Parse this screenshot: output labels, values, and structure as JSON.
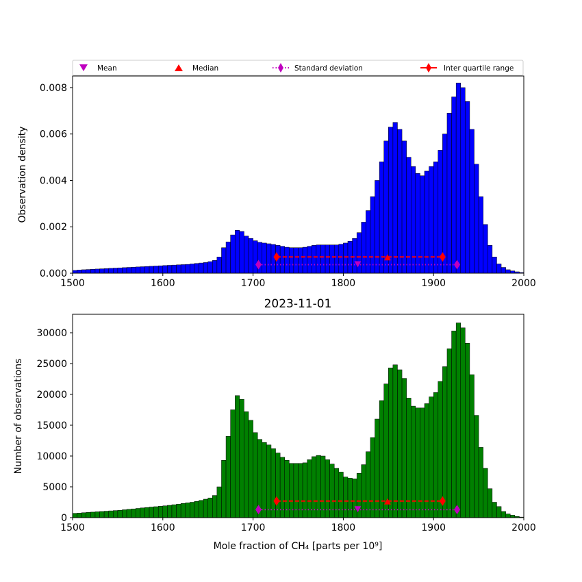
{
  "legend": {
    "entries": [
      {
        "label": "Mean",
        "color": "#bf00bf",
        "marker": "triangle-down",
        "line": "none"
      },
      {
        "label": "Median",
        "color": "#ff0000",
        "marker": "triangle-up",
        "line": "none"
      },
      {
        "label": "Standard deviation",
        "color": "#bf00bf",
        "marker": "diamond",
        "line": "dotted"
      },
      {
        "label": "Inter quartile range",
        "color": "#ff0000",
        "marker": "diamond",
        "line": "solid"
      }
    ]
  },
  "chart_data": [
    {
      "type": "bar",
      "title": "",
      "xlabel": "",
      "ylabel": "Observation density",
      "xlim": [
        1500,
        2000
      ],
      "ylim": [
        0,
        0.0085
      ],
      "bin_width": 5,
      "bar_color": "#0000ff",
      "xticks": [
        "1500",
        "1600",
        "1700",
        "1800",
        "1900",
        "2000"
      ],
      "yticks": [
        "0.000",
        "0.002",
        "0.004",
        "0.006",
        "0.008"
      ],
      "ytick_values": [
        0,
        0.002,
        0.004,
        0.006,
        0.008
      ],
      "bin_starts": [
        1500,
        1505,
        1510,
        1515,
        1520,
        1525,
        1530,
        1535,
        1540,
        1545,
        1550,
        1555,
        1560,
        1565,
        1570,
        1575,
        1580,
        1585,
        1590,
        1595,
        1600,
        1605,
        1610,
        1615,
        1620,
        1625,
        1630,
        1635,
        1640,
        1645,
        1650,
        1655,
        1660,
        1665,
        1670,
        1675,
        1680,
        1685,
        1690,
        1695,
        1700,
        1705,
        1710,
        1715,
        1720,
        1725,
        1730,
        1735,
        1740,
        1745,
        1750,
        1755,
        1760,
        1765,
        1770,
        1775,
        1780,
        1785,
        1790,
        1795,
        1800,
        1805,
        1810,
        1815,
        1820,
        1825,
        1830,
        1835,
        1840,
        1845,
        1850,
        1855,
        1860,
        1865,
        1870,
        1875,
        1880,
        1885,
        1890,
        1895,
        1900,
        1905,
        1910,
        1915,
        1920,
        1925,
        1930,
        1935,
        1940,
        1945,
        1950,
        1955,
        1960,
        1965,
        1970,
        1975,
        1980,
        1985,
        1990,
        1995
      ],
      "values": [
        0.00012,
        0.00014,
        0.00015,
        0.00016,
        0.00017,
        0.00018,
        0.00019,
        0.0002,
        0.00021,
        0.00022,
        0.00023,
        0.00024,
        0.00025,
        0.00026,
        0.00027,
        0.00028,
        0.00029,
        0.0003,
        0.00031,
        0.00032,
        0.00033,
        0.00034,
        0.00035,
        0.00036,
        0.00037,
        0.00038,
        0.0004,
        0.00042,
        0.00044,
        0.00046,
        0.0005,
        0.00055,
        0.0007,
        0.0011,
        0.00135,
        0.00165,
        0.00185,
        0.0018,
        0.0016,
        0.0015,
        0.0014,
        0.00133,
        0.0013,
        0.00127,
        0.00124,
        0.0012,
        0.00116,
        0.00112,
        0.0011,
        0.0011,
        0.0011,
        0.00112,
        0.00116,
        0.0012,
        0.00122,
        0.00122,
        0.00122,
        0.00122,
        0.00122,
        0.00125,
        0.0013,
        0.00138,
        0.0015,
        0.00175,
        0.0022,
        0.0027,
        0.0033,
        0.004,
        0.0048,
        0.0057,
        0.0063,
        0.0065,
        0.0062,
        0.0057,
        0.005,
        0.0046,
        0.0043,
        0.0042,
        0.0044,
        0.0046,
        0.0048,
        0.0053,
        0.006,
        0.0069,
        0.0076,
        0.0082,
        0.008,
        0.0074,
        0.0062,
        0.0047,
        0.0033,
        0.0021,
        0.0012,
        0.0007,
        0.0004,
        0.00025,
        0.00015,
        0.0001,
        6e-05,
        3e-05
      ],
      "stats": {
        "mean": 1816,
        "median": 1849,
        "std_range": [
          1706,
          1926
        ],
        "iqr_range": [
          1726,
          1910
        ],
        "std_level": 0.00037,
        "iqr_level": 0.0007,
        "mean_level": 0.00037,
        "median_level": 0.0007
      }
    },
    {
      "type": "bar",
      "title": "2023-11-01",
      "xlabel": "Mole fraction of CH₄ [parts per 10⁹]",
      "ylabel": "Number of observations",
      "xlim": [
        1500,
        2000
      ],
      "ylim": [
        0,
        33000
      ],
      "bin_width": 5,
      "bar_color": "#008000",
      "xticks": [
        "1500",
        "1600",
        "1700",
        "1800",
        "1900",
        "2000"
      ],
      "yticks": [
        "0",
        "5000",
        "10000",
        "15000",
        "20000",
        "25000",
        "30000"
      ],
      "ytick_values": [
        0,
        5000,
        10000,
        15000,
        20000,
        25000,
        30000
      ],
      "bin_starts": [
        1500,
        1505,
        1510,
        1515,
        1520,
        1525,
        1530,
        1535,
        1540,
        1545,
        1550,
        1555,
        1560,
        1565,
        1570,
        1575,
        1580,
        1585,
        1590,
        1595,
        1600,
        1605,
        1610,
        1615,
        1620,
        1625,
        1630,
        1635,
        1640,
        1645,
        1650,
        1655,
        1660,
        1665,
        1670,
        1675,
        1680,
        1685,
        1690,
        1695,
        1700,
        1705,
        1710,
        1715,
        1720,
        1725,
        1730,
        1735,
        1740,
        1745,
        1750,
        1755,
        1760,
        1765,
        1770,
        1775,
        1780,
        1785,
        1790,
        1795,
        1800,
        1805,
        1810,
        1815,
        1820,
        1825,
        1830,
        1835,
        1840,
        1845,
        1850,
        1855,
        1860,
        1865,
        1870,
        1875,
        1880,
        1885,
        1890,
        1895,
        1900,
        1905,
        1910,
        1915,
        1920,
        1925,
        1930,
        1935,
        1940,
        1945,
        1950,
        1955,
        1960,
        1965,
        1970,
        1975,
        1980,
        1985,
        1990,
        1995
      ],
      "values": [
        700,
        750,
        800,
        850,
        900,
        950,
        1000,
        1050,
        1100,
        1150,
        1200,
        1280,
        1350,
        1420,
        1500,
        1580,
        1650,
        1720,
        1780,
        1850,
        1920,
        2000,
        2100,
        2200,
        2300,
        2400,
        2500,
        2650,
        2800,
        3000,
        3200,
        3600,
        5000,
        9300,
        13200,
        17500,
        19800,
        19200,
        17200,
        15800,
        13800,
        12700,
        12200,
        11800,
        11200,
        10500,
        9800,
        9300,
        8800,
        8800,
        8800,
        8900,
        9400,
        9900,
        10100,
        10000,
        9400,
        8700,
        8000,
        7400,
        6600,
        6400,
        6300,
        7200,
        8600,
        10700,
        13000,
        16000,
        19000,
        21700,
        24300,
        24800,
        24000,
        22600,
        19400,
        18100,
        17800,
        17800,
        18500,
        19600,
        20300,
        22100,
        24500,
        27400,
        30300,
        31600,
        30800,
        28300,
        23200,
        16600,
        11400,
        8000,
        4700,
        2500,
        1800,
        1000,
        600,
        400,
        200,
        100
      ],
      "stats": {
        "mean": 1816,
        "median": 1849,
        "std_range": [
          1706,
          1926
        ],
        "iqr_range": [
          1726,
          1910
        ],
        "std_level": 1300,
        "iqr_level": 2700,
        "mean_level": 1300,
        "median_level": 2700
      }
    }
  ]
}
